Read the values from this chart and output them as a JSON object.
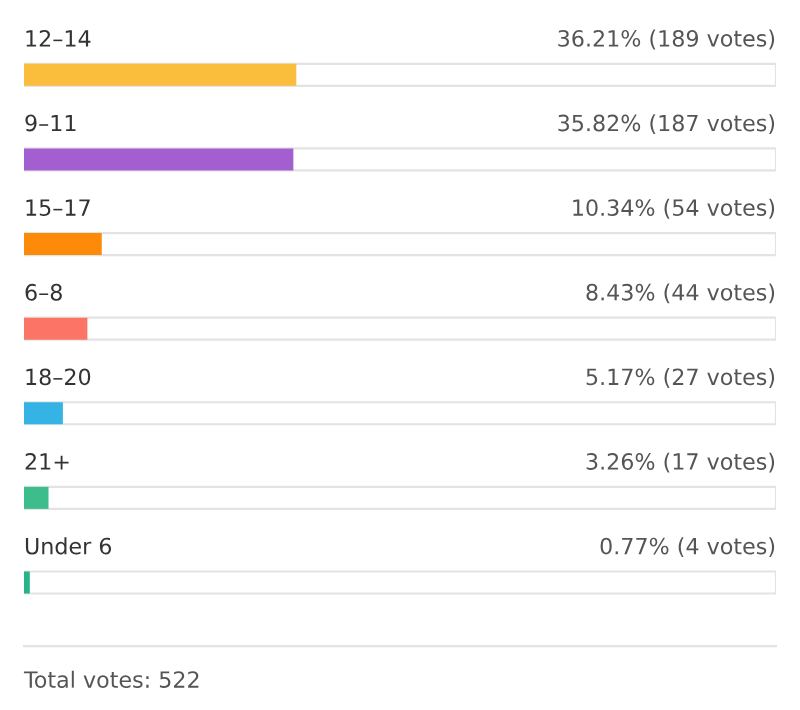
{
  "chart_data": {
    "type": "bar",
    "orientation": "horizontal",
    "categories": [
      "12–14",
      "9–11",
      "15–17",
      "6–8",
      "18–20",
      "21+",
      "Under 6"
    ],
    "values": [
      36.21,
      35.82,
      10.34,
      8.43,
      5.17,
      3.26,
      0.77
    ],
    "colors": [
      "#fbbd3c",
      "#a35fcf",
      "#fd8a08",
      "#fb7466",
      "#34b3e4",
      "#3dbd8b",
      "#27b38a"
    ],
    "value_labels": [
      "36.21% (189 votes)",
      "35.82% (187 votes)",
      "10.34% (54 votes)",
      "8.43% (44 votes)",
      "5.17% (27 votes)",
      "3.26% (17 votes)",
      "0.77% (4 votes)"
    ],
    "xlim": [
      0,
      100
    ],
    "annotations": [
      "Total votes: 522"
    ]
  }
}
